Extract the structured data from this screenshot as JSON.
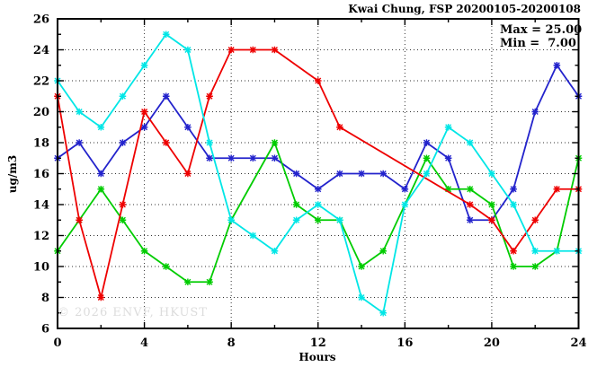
{
  "header": {
    "title": "Kwai Chung, FSP 20200105-20200108"
  },
  "legend": {
    "lines": [
      "Max = 25.00",
      "Min =  7.00"
    ]
  },
  "watermark": {
    "text": "© 2026 ENVF, HKUST"
  },
  "chart_data": {
    "type": "line",
    "title": "Kwai Chung, FSP 20200105-20200108",
    "xlabel": "Hours",
    "ylabel": "ug/m3",
    "xlim": [
      0,
      24
    ],
    "ylim": [
      6,
      26
    ],
    "x_major_ticks": [
      0,
      4,
      8,
      12,
      16,
      20,
      24
    ],
    "x_minor_step": 2,
    "y_major_ticks": [
      6,
      8,
      10,
      12,
      14,
      16,
      18,
      20,
      22,
      24,
      26
    ],
    "y_minor_step": 1,
    "grid": "dotted lines at major ticks, mirrored inward tick marks on all four borders",
    "legend_position": "top-right inside plot",
    "stat_max": 25.0,
    "stat_min": 7.0,
    "note": "null = missing hourly sample; line drawn straight across gaps",
    "x": [
      0,
      1,
      2,
      3,
      4,
      5,
      6,
      7,
      8,
      9,
      10,
      11,
      12,
      13,
      14,
      15,
      16,
      17,
      18,
      19,
      20,
      21,
      22,
      23,
      24
    ],
    "series": [
      {
        "name": "series-blue",
        "color": "#2323cc",
        "values": [
          17,
          18,
          16,
          18,
          19,
          21,
          19,
          17,
          17,
          17,
          17,
          16,
          15,
          16,
          16,
          16,
          15,
          18,
          17,
          13,
          13,
          15,
          20,
          23,
          21
        ]
      },
      {
        "name": "series-green",
        "color": "#00cc00",
        "values": [
          11,
          13,
          15,
          13,
          11,
          10,
          9,
          9,
          13,
          null,
          18,
          14,
          13,
          13,
          10,
          11,
          null,
          17,
          15,
          15,
          14,
          10,
          10,
          11,
          17
        ]
      },
      {
        "name": "series-red",
        "color": "#ee0000",
        "values": [
          21,
          13,
          8,
          14,
          20,
          18,
          16,
          21,
          24,
          24,
          24,
          null,
          22,
          19,
          null,
          null,
          null,
          null,
          null,
          14,
          13,
          11,
          13,
          15,
          15
        ]
      },
      {
        "name": "series-cyan",
        "color": "#00e6e6",
        "values": [
          22,
          20,
          19,
          21,
          23,
          25,
          24,
          18,
          13,
          12,
          11,
          13,
          14,
          13,
          8,
          7,
          14,
          16,
          19,
          18,
          16,
          14,
          11,
          11,
          11
        ]
      }
    ]
  }
}
